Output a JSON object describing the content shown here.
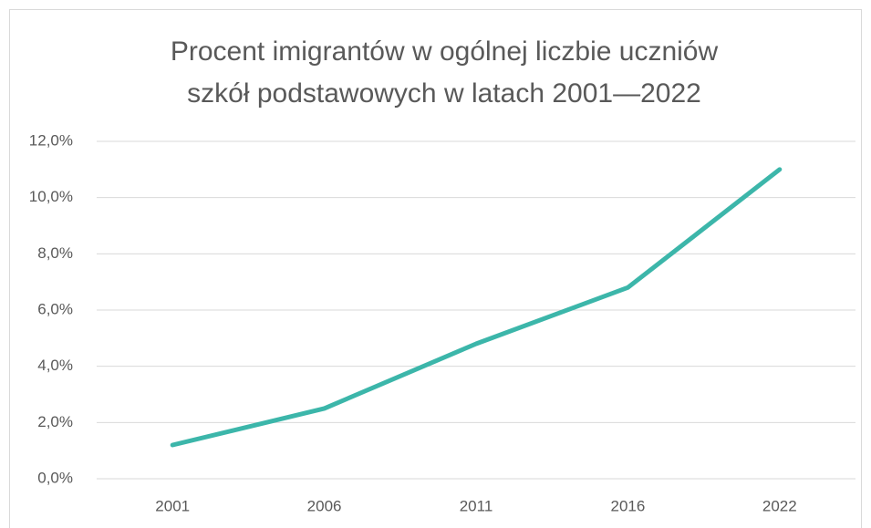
{
  "chart_data": {
    "type": "line",
    "title": [
      "Procent imigrantów w ogólnej liczbie uczniów",
      "szkół podstawowych w latach 2001—2022"
    ],
    "categories": [
      "2001",
      "2006",
      "2011",
      "2016",
      "2022"
    ],
    "values": [
      1.2,
      2.5,
      4.8,
      6.8,
      11.0
    ],
    "color": "#3cb6aa",
    "ylim": [
      0,
      12
    ],
    "yticks": [
      {
        "value": 0,
        "label": "0,0%"
      },
      {
        "value": 2,
        "label": "2,0%"
      },
      {
        "value": 4,
        "label": "4,0%"
      },
      {
        "value": 6,
        "label": "6,0%"
      },
      {
        "value": 8,
        "label": "8,0%"
      },
      {
        "value": 10,
        "label": "10,0%"
      },
      {
        "value": 12,
        "label": "12,0%"
      }
    ],
    "grid": true
  }
}
